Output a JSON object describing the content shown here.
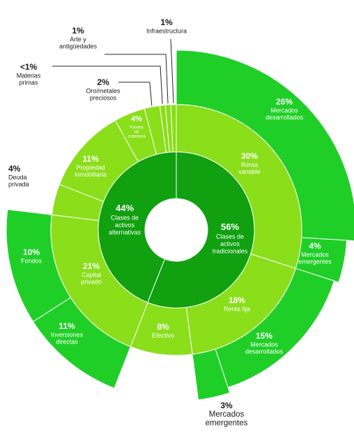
{
  "chart_data": {
    "type": "sunburst",
    "title": "",
    "colors": {
      "inner": "#10a010",
      "middle": "#8ade1a",
      "outer": "#1fcf27",
      "text": "#ffffff",
      "outside_text": "#1a1a1a",
      "leader": "#222222"
    },
    "inner": [
      {
        "id": "trad",
        "pct": "56%",
        "label": [
          "Clases de",
          "activos",
          "tradicionales"
        ],
        "value": 56
      },
      {
        "id": "alt",
        "pct": "44%",
        "label": [
          "Clases de",
          "activos",
          "alternativas"
        ],
        "value": 44
      }
    ],
    "middle": [
      {
        "id": "renta_variable",
        "parent": "trad",
        "pct": "30%",
        "label": [
          "Renta",
          "variable"
        ],
        "value": 30
      },
      {
        "id": "renta_fija",
        "parent": "trad",
        "pct": "18%",
        "label": [
          "Renta fija"
        ],
        "value": 18
      },
      {
        "id": "efectivo",
        "parent": "trad",
        "pct": "8%",
        "label": [
          "Efectivo"
        ],
        "value": 8
      },
      {
        "id": "capital_privado",
        "parent": "alt",
        "pct": "21%",
        "label": [
          "Capital",
          "privado"
        ],
        "value": 21
      },
      {
        "id": "deuda_privada",
        "parent": "alt",
        "pct": "4%",
        "label": [
          "Deuda",
          "privada"
        ],
        "value": 4,
        "outside": true
      },
      {
        "id": "propiedad",
        "parent": "alt",
        "pct": "11%",
        "label": [
          "Propiedad",
          "inmobiliaria"
        ],
        "value": 11
      },
      {
        "id": "fondos_cobertura",
        "parent": "alt",
        "pct": "4%",
        "label": [
          "Fondos",
          "de",
          "cobertura"
        ],
        "value": 4,
        "small": true
      },
      {
        "id": "oro",
        "parent": "alt",
        "pct": "2%",
        "label": [
          "Oro/metales",
          "preciosos"
        ],
        "value": 2,
        "outside": true
      },
      {
        "id": "materias",
        "parent": "alt",
        "pct": "<1%",
        "label": [
          "Materias",
          "primas"
        ],
        "value": 0.7,
        "outside": true
      },
      {
        "id": "arte",
        "parent": "alt",
        "pct": "1%",
        "label": [
          "Arte y",
          "antigüedades"
        ],
        "value": 0.7,
        "outside": true
      },
      {
        "id": "infra",
        "parent": "alt",
        "pct": "1%",
        "label": [
          "Infraestructura"
        ],
        "value": 0.7,
        "outside": true
      }
    ],
    "outer": [
      {
        "id": "rv_desarrollados",
        "parent": "renta_variable",
        "pct": "26%",
        "label": [
          "Mercados",
          "desarrollados"
        ],
        "value": 26
      },
      {
        "id": "rv_emergentes",
        "parent": "renta_variable",
        "pct": "4%",
        "label": [
          "Mercados",
          "emergentes"
        ],
        "value": 4
      },
      {
        "id": "rf_desarrollados",
        "parent": "renta_fija",
        "pct": "15%",
        "label": [
          "Mercados",
          "desarrollados"
        ],
        "value": 15
      },
      {
        "id": "rf_emergentes",
        "parent": "renta_fija",
        "pct": "3%",
        "label": [
          "Mercados",
          "emergentes"
        ],
        "value": 3,
        "outside": true
      },
      {
        "id": "cp_fondos",
        "parent": "capital_privado",
        "pct": "10%",
        "label": [
          "Fondos"
        ],
        "value": 10
      },
      {
        "id": "cp_directas",
        "parent": "capital_privado",
        "pct": "11%",
        "label": [
          "Inversiones",
          "directas"
        ],
        "value": 11
      }
    ]
  }
}
